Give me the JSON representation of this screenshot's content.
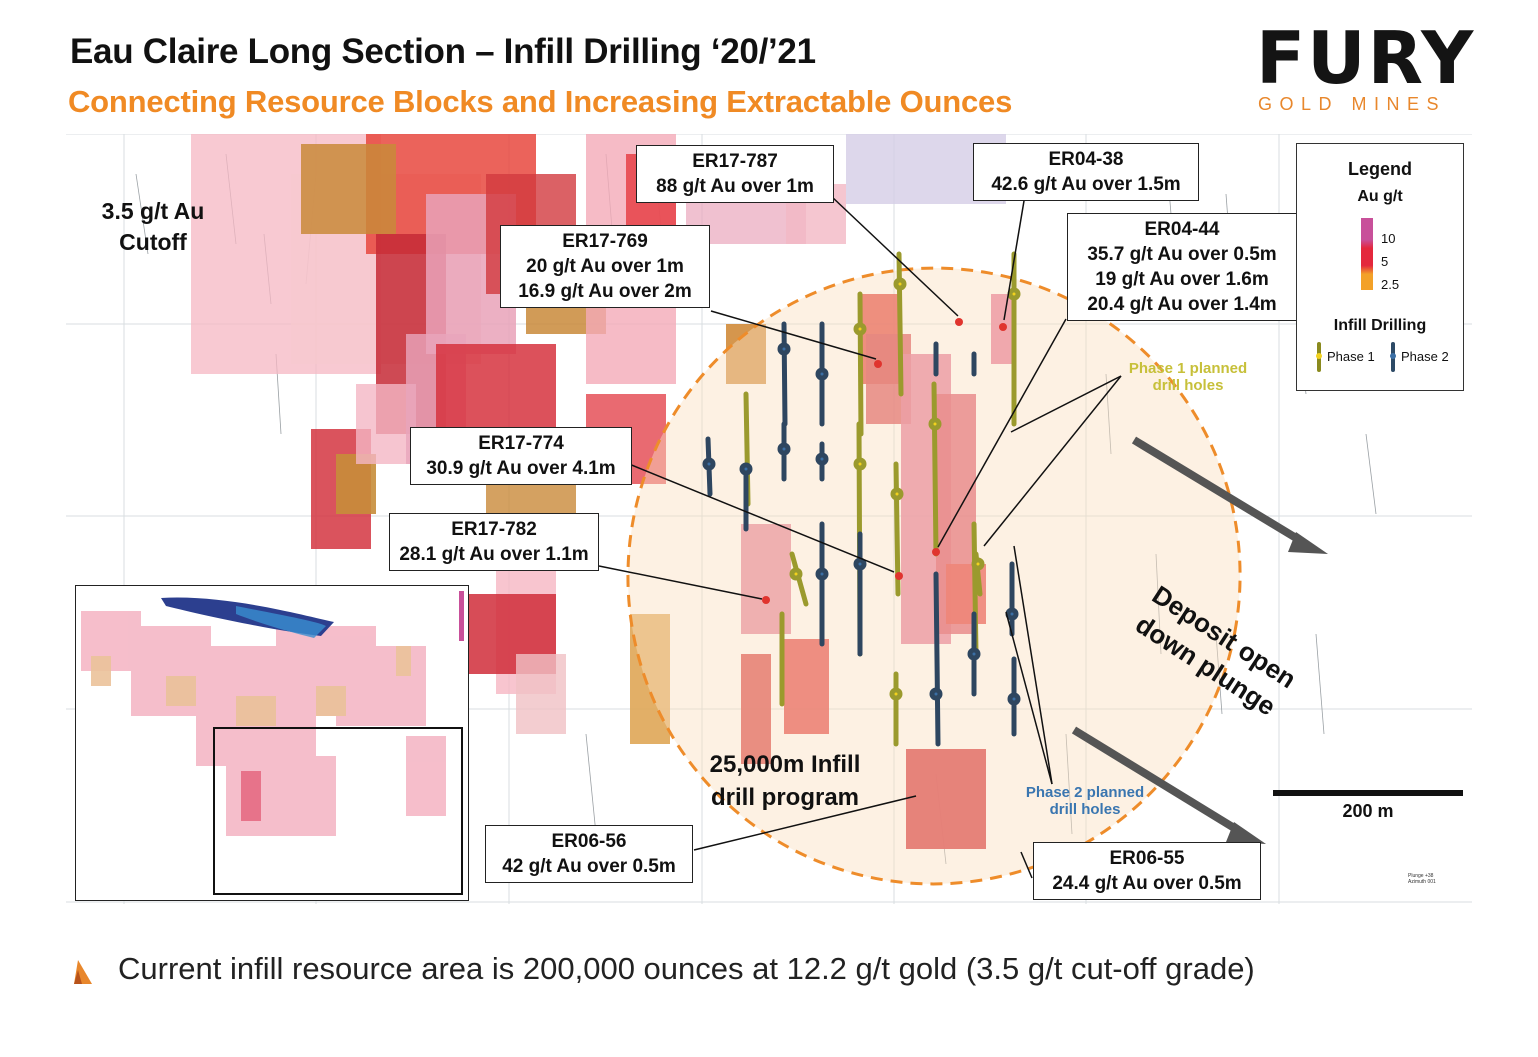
{
  "header": {
    "title": "Eau Claire Long Section – Infill Drilling ‘20/’21",
    "subtitle": "Connecting Resource Blocks and Increasing Extractable Ounces"
  },
  "logo": {
    "word": "FURY",
    "tagline": "GOLD MINES",
    "accent_color": "#e8872c"
  },
  "map": {
    "cutoff_label": "3.5 g/t Au Cutoff",
    "program_label": "25,000m Infill drill program",
    "plunge_label": "Deposit open down plunge",
    "phase1_label": "Phase 1 planned drill holes",
    "phase2_label": "Phase 2 planned drill holes",
    "scale_label": "200 m",
    "plunge_tag": "Plunge +38 Azimuth 001"
  },
  "callouts": [
    {
      "id": "ER17-787",
      "lines": [
        "ER17-787",
        "88 g/t Au over 1m"
      ]
    },
    {
      "id": "ER04-38",
      "lines": [
        "ER04-38",
        "42.6 g/t Au over 1.5m"
      ]
    },
    {
      "id": "ER17-769",
      "lines": [
        "ER17-769",
        "20 g/t Au over 1m",
        "16.9 g/t Au over 2m"
      ]
    },
    {
      "id": "ER04-44",
      "lines": [
        "ER04-44",
        "35.7 g/t Au over 0.5m",
        "19 g/t Au over 1.6m",
        "20.4 g/t Au over 1.4m"
      ]
    },
    {
      "id": "ER17-774",
      "lines": [
        "ER17-774",
        "30.9 g/t Au over 4.1m"
      ]
    },
    {
      "id": "ER17-782",
      "lines": [
        "ER17-782",
        "28.1 g/t Au over 1.1m"
      ]
    },
    {
      "id": "ER06-56",
      "lines": [
        "ER06-56",
        "42 g/t Au over 0.5m"
      ]
    },
    {
      "id": "ER06-55",
      "lines": [
        "ER06-55",
        "24.4 g/t Au over 0.5m"
      ]
    }
  ],
  "legend": {
    "title": "Legend",
    "unit": "Au g/t",
    "ticks": [
      "10",
      "5",
      "2.5"
    ],
    "infill_title": "Infill Drilling",
    "phase1": "Phase 1",
    "phase2": "Phase 2",
    "colors": {
      "high": "#c8509a",
      "mid": "#e4283c",
      "low": "#f3a128",
      "phase1": "#8a8a1e",
      "phase2": "#2d4a66"
    }
  },
  "footnote": "Current infill resource area is 200,000 ounces at 12.2 g/t gold (3.5 g/t cut-off grade)"
}
